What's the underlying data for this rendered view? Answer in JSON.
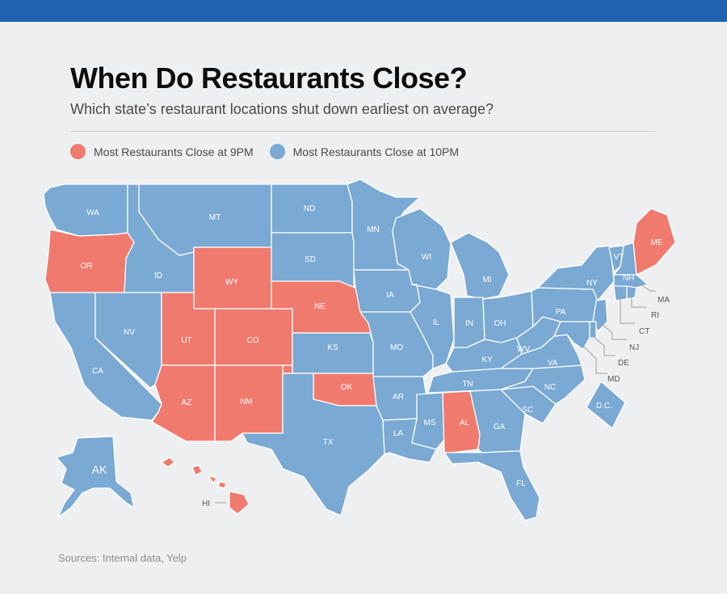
{
  "title": "When Do Restaurants Close?",
  "subtitle": "Which state’s restaurant locations shut down earliest on average?",
  "legend": [
    {
      "label": "Most Restaurants Close at 9PM",
      "color": "#f07a6e"
    },
    {
      "label": "Most Restaurants Close at 10PM",
      "color": "#7aa9d3"
    }
  ],
  "source": "Sources: Internal data, Yelp",
  "states": {
    "WA": "10PM",
    "OR": "9PM",
    "CA": "10PM",
    "NV": "10PM",
    "ID": "10PM",
    "MT": "10PM",
    "WY": "9PM",
    "UT": "9PM",
    "CO": "9PM",
    "AZ": "9PM",
    "NM": "9PM",
    "ND": "10PM",
    "SD": "10PM",
    "NE": "9PM",
    "KS": "10PM",
    "OK": "9PM",
    "TX": "10PM",
    "MN": "10PM",
    "IA": "10PM",
    "MO": "10PM",
    "AR": "10PM",
    "LA": "10PM",
    "WI": "10PM",
    "IL": "10PM",
    "MI": "10PM",
    "IN": "10PM",
    "OH": "10PM",
    "KY": "10PM",
    "TN": "10PM",
    "MS": "10PM",
    "AL": "9PM",
    "GA": "10PM",
    "FL": "10PM",
    "SC": "10PM",
    "NC": "10PM",
    "VA": "10PM",
    "WV": "10PM",
    "PA": "10PM",
    "NY": "10PM",
    "VT": "10PM",
    "NH": "10PM",
    "ME": "9PM",
    "MA": "10PM",
    "RI": "10PM",
    "CT": "10PM",
    "NJ": "10PM",
    "DE": "10PM",
    "MD": "10PM",
    "D.C.": "10PM",
    "AK": "10PM",
    "HI": "9PM"
  },
  "state_labels": {
    "WA": "WA",
    "OR": "OR",
    "CA": "CA",
    "NV": "NV",
    "ID": "ID",
    "MT": "MT",
    "WY": "WY",
    "UT": "UT",
    "CO": "CO",
    "AZ": "AZ",
    "NM": "NM",
    "ND": "ND",
    "SD": "SD",
    "NE": "NE",
    "KS": "KS",
    "OK": "OK",
    "TX": "TX",
    "MN": "MN",
    "IA": "IA",
    "MO": "MO",
    "AR": "AR",
    "LA": "LA",
    "WI": "WI",
    "IL": "IL",
    "MI": "MI",
    "IN": "IN",
    "OH": "OH",
    "KY": "KY",
    "TN": "TN",
    "MS": "MS",
    "AL": "AL",
    "GA": "GA",
    "FL": "FL",
    "SC": "SC",
    "NC": "NC",
    "VA": "VA",
    "WV": "WV",
    "PA": "PA",
    "NY": "NY",
    "VT": "VT",
    "NH": "NH",
    "ME": "ME",
    "MA": "MA",
    "RI": "RI",
    "CT": "CT",
    "NJ": "NJ",
    "DE": "DE",
    "MD": "MD",
    "DC": "D.C.",
    "AK": "AK",
    "HI": "HI"
  },
  "colors": {
    "9PM": "#f07a6e",
    "10PM": "#7aa9d3"
  }
}
